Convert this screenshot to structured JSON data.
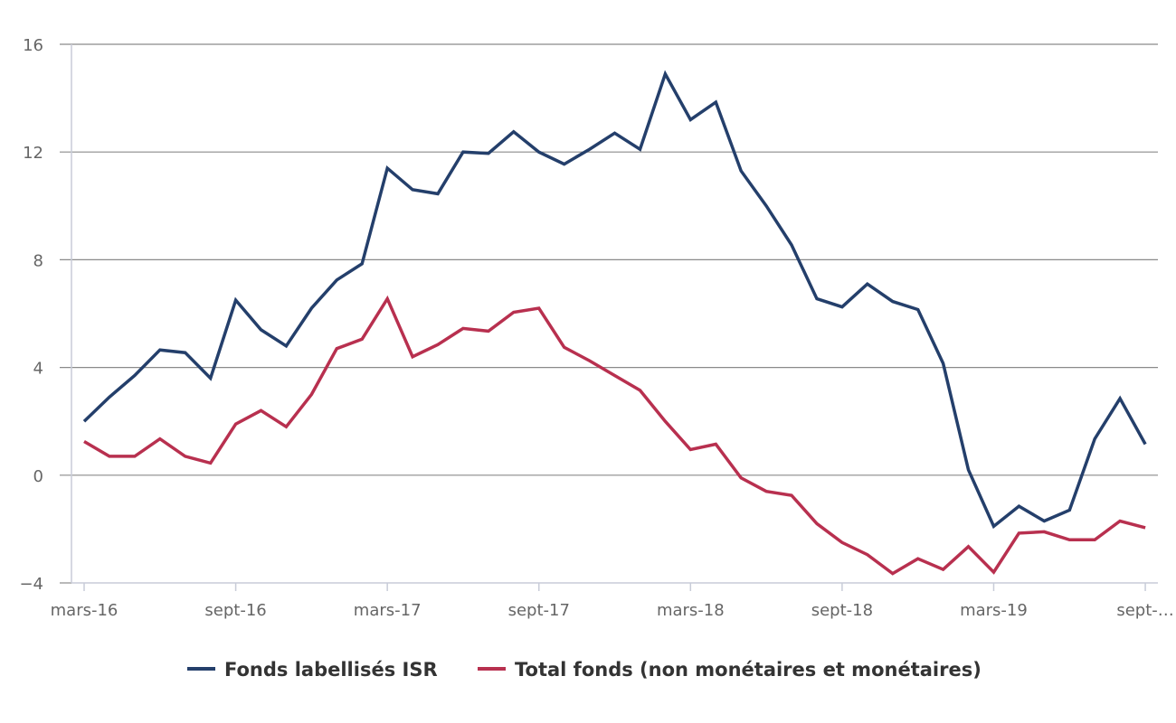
{
  "chart_data": {
    "type": "line",
    "title": "",
    "xlabel": "",
    "ylabel": "",
    "ylim": [
      -4,
      16
    ],
    "yticks": [
      16,
      12,
      8,
      4,
      0,
      -4
    ],
    "grid": true,
    "legend_position": "bottom-center",
    "x": [
      "mars-16",
      "avr-16",
      "mai-16",
      "juin-16",
      "juil-16",
      "août-16",
      "sept-16",
      "oct-16",
      "nov-16",
      "déc-16",
      "janv-17",
      "févr-17",
      "mars-17",
      "avr-17",
      "mai-17",
      "juin-17",
      "juil-17",
      "août-17",
      "sept-17",
      "oct-17",
      "nov-17",
      "déc-17",
      "janv-18",
      "févr-18",
      "mars-18",
      "avr-18",
      "mai-18",
      "juin-18",
      "juil-18",
      "août-18",
      "sept-18",
      "oct-18",
      "nov-18",
      "déc-18",
      "janv-19",
      "févr-19",
      "mars-19",
      "avr-19",
      "mai-19",
      "juin-19",
      "juil-19",
      "août-19",
      "sept-19"
    ],
    "xtick_labels": [
      {
        "index": 0,
        "label": "mars-16"
      },
      {
        "index": 6,
        "label": "sept-16"
      },
      {
        "index": 12,
        "label": "mars-17"
      },
      {
        "index": 18,
        "label": "sept-17"
      },
      {
        "index": 24,
        "label": "mars-18"
      },
      {
        "index": 30,
        "label": "sept-18"
      },
      {
        "index": 36,
        "label": "mars-19"
      },
      {
        "index": 42,
        "label": "sept-…"
      }
    ],
    "series": [
      {
        "name": "Fonds labellisés ISR",
        "color": "#243f6b",
        "values": [
          2.0,
          2.9,
          3.7,
          4.65,
          4.55,
          3.6,
          6.5,
          5.4,
          4.8,
          6.2,
          7.25,
          7.85,
          11.4,
          10.6,
          10.45,
          12.0,
          11.95,
          12.75,
          12.0,
          11.55,
          12.1,
          12.7,
          12.1,
          14.9,
          13.2,
          13.85,
          11.3,
          10.0,
          8.55,
          6.55,
          6.25,
          7.1,
          6.45,
          6.15,
          4.15,
          0.2,
          -1.9,
          -1.15,
          -1.7,
          -1.3,
          1.35,
          2.85,
          1.15
        ]
      },
      {
        "name": "Total fonds (non monétaires et monétaires)",
        "color": "#b8304f",
        "values": [
          1.25,
          0.7,
          0.7,
          1.35,
          0.7,
          0.45,
          1.9,
          2.4,
          1.8,
          3.0,
          4.7,
          5.05,
          6.55,
          4.4,
          4.85,
          5.45,
          5.35,
          6.05,
          6.2,
          4.75,
          4.25,
          3.7,
          3.15,
          2.0,
          0.95,
          1.15,
          -0.1,
          -0.6,
          -0.75,
          -1.8,
          -2.5,
          -2.95,
          -3.65,
          -3.1,
          -3.5,
          -2.65,
          -3.6,
          -2.15,
          -2.1,
          -2.4,
          -2.4,
          -1.7,
          -1.95
        ]
      }
    ]
  },
  "colors": {
    "gridline": "#8a8a8a",
    "axis": "#c8ccd8",
    "tick_text": "#666666",
    "legend_text": "#333333"
  }
}
